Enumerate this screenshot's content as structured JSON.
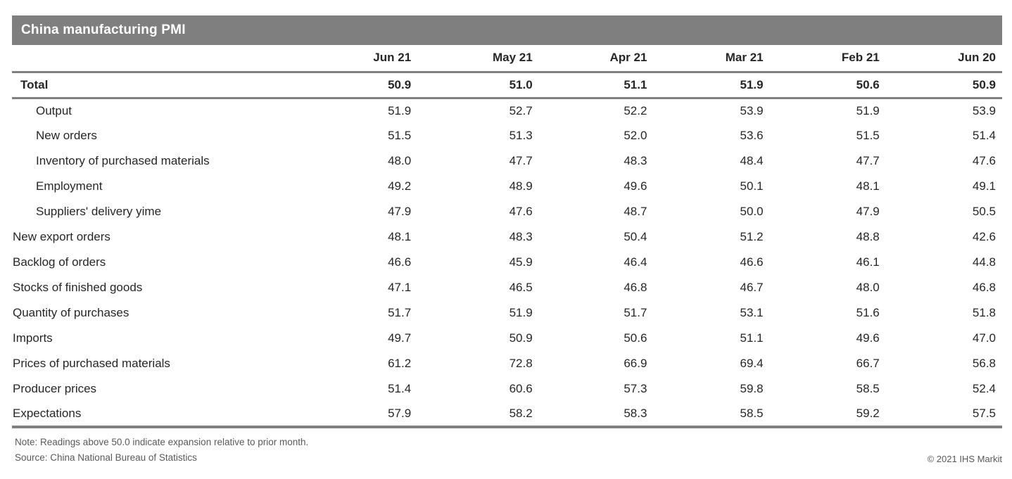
{
  "chart_data": {
    "type": "table",
    "title": "China manufacturing PMI",
    "columns": [
      "Jun 21",
      "May 21",
      "Apr 21",
      "Mar 21",
      "Feb 21",
      "Jun 20"
    ],
    "rows": [
      {
        "label": "Total",
        "style": "total",
        "values": [
          "50.9",
          "51.0",
          "51.1",
          "51.9",
          "50.6",
          "50.9"
        ]
      },
      {
        "label": "Output",
        "style": "sub",
        "values": [
          "51.9",
          "52.7",
          "52.2",
          "53.9",
          "51.9",
          "53.9"
        ]
      },
      {
        "label": "New orders",
        "style": "sub",
        "values": [
          "51.5",
          "51.3",
          "52.0",
          "53.6",
          "51.5",
          "51.4"
        ]
      },
      {
        "label": "Inventory of purchased materials",
        "style": "sub",
        "values": [
          "48.0",
          "47.7",
          "48.3",
          "48.4",
          "47.7",
          "47.6"
        ]
      },
      {
        "label": "Employment",
        "style": "sub",
        "values": [
          "49.2",
          "48.9",
          "49.6",
          "50.1",
          "48.1",
          "49.1"
        ]
      },
      {
        "label": "Suppliers' delivery yime",
        "style": "sub",
        "values": [
          "47.9",
          "47.6",
          "48.7",
          "50.0",
          "47.9",
          "50.5"
        ]
      },
      {
        "label": "New export orders",
        "style": "main",
        "values": [
          "48.1",
          "48.3",
          "50.4",
          "51.2",
          "48.8",
          "42.6"
        ]
      },
      {
        "label": "Backlog of orders",
        "style": "main",
        "values": [
          "46.6",
          "45.9",
          "46.4",
          "46.6",
          "46.1",
          "44.8"
        ]
      },
      {
        "label": "Stocks of finished goods",
        "style": "main",
        "values": [
          "47.1",
          "46.5",
          "46.8",
          "46.7",
          "48.0",
          "46.8"
        ]
      },
      {
        "label": "Quantity of purchases",
        "style": "main",
        "values": [
          "51.7",
          "51.9",
          "51.7",
          "53.1",
          "51.6",
          "51.8"
        ]
      },
      {
        "label": "Imports",
        "style": "main",
        "values": [
          "49.7",
          "50.9",
          "50.6",
          "51.1",
          "49.6",
          "47.0"
        ]
      },
      {
        "label": "Prices of purchased materials",
        "style": "main",
        "values": [
          "61.2",
          "72.8",
          "66.9",
          "69.4",
          "66.7",
          "56.8"
        ]
      },
      {
        "label": "Producer prices",
        "style": "main",
        "values": [
          "51.4",
          "60.6",
          "57.3",
          "59.8",
          "58.5",
          "52.4"
        ]
      },
      {
        "label": "Expectations",
        "style": "main",
        "values": [
          "57.9",
          "58.2",
          "58.3",
          "58.5",
          "59.2",
          "57.5"
        ]
      }
    ],
    "note": "Note: Readings above 50.0 indicate expansion relative to prior month.",
    "source": "Source: China National Bureau of Statistics",
    "copyright": "© 2021 IHS Markit"
  },
  "colors": {
    "title_bar": "#7f7f7f",
    "rule": "#808080",
    "text": "#262626",
    "footnote_text": "#595959"
  }
}
